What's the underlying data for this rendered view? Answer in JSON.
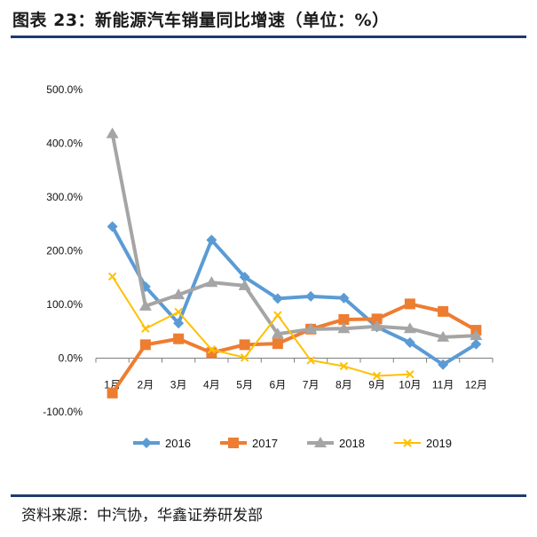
{
  "header": {
    "title": "图表 23：新能源汽车销量同比增速（单位：%）"
  },
  "footer": {
    "source": "资料来源：中汽协，华鑫证券研发部"
  },
  "colors": {
    "rule": "#1f3b6e",
    "axis": "#7f7f7f"
  },
  "chart_data": {
    "type": "line",
    "title": "",
    "xlabel": "",
    "ylabel": "",
    "categories": [
      "1月",
      "2月",
      "3月",
      "4月",
      "5月",
      "6月",
      "7月",
      "8月",
      "9月",
      "10月",
      "11月",
      "12月"
    ],
    "y_tick_labels": [
      "500.0%",
      "400.0%",
      "300.0%",
      "200.0%",
      "100.0%",
      "0.0%",
      "-100.0%"
    ],
    "ylim": [
      -100,
      500
    ],
    "grid": false,
    "legend_position": "bottom",
    "series": [
      {
        "name": "2016",
        "color": "#5b9bd5",
        "marker": "diamond",
        "values": [
          245,
          133,
          65,
          220,
          151,
          111,
          115,
          112,
          58,
          29,
          -12,
          26
        ]
      },
      {
        "name": "2017",
        "color": "#ed7d31",
        "marker": "square",
        "values": [
          -65,
          25,
          36,
          10,
          25,
          27,
          54,
          72,
          73,
          101,
          87,
          52
        ]
      },
      {
        "name": "2018",
        "color": "#a5a5a5",
        "marker": "triangle",
        "values": [
          418,
          97,
          118,
          141,
          135,
          45,
          54,
          55,
          59,
          55,
          39,
          42
        ]
      },
      {
        "name": "2019",
        "color": "#ffc000",
        "marker": "x",
        "values": [
          152,
          55,
          86,
          16,
          1,
          80,
          -4,
          -15,
          -33,
          -30,
          null,
          null
        ]
      }
    ]
  }
}
